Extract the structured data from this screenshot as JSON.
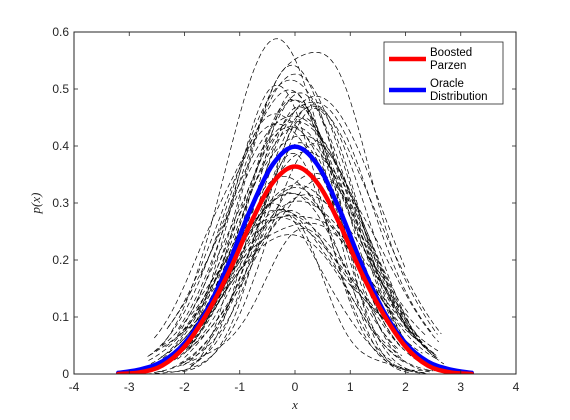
{
  "chart_data": {
    "type": "line",
    "xlabel": "x",
    "ylabel": "p(x)",
    "xlim": [
      -4,
      4
    ],
    "ylim": [
      0,
      0.6
    ],
    "xticks": [
      -4,
      -3,
      -2,
      -1,
      0,
      1,
      2,
      3,
      4
    ],
    "xtick_labels": [
      "-4",
      "-3",
      "-2",
      "-1",
      "0",
      "1",
      "2",
      "3",
      "4"
    ],
    "yticks": [
      0,
      0.1,
      0.2,
      0.3,
      0.4,
      0.5,
      0.6
    ],
    "ytick_labels": [
      "0",
      "0.1",
      "0.2",
      "0.3",
      "0.4",
      "0.5",
      "0.6"
    ],
    "grid": false,
    "legend_position": "top-right",
    "x": [
      -3.2,
      -2.8,
      -2.4,
      -2.0,
      -1.6,
      -1.2,
      -0.8,
      -0.4,
      0.0,
      0.4,
      0.8,
      1.2,
      1.6,
      2.0,
      2.4,
      2.8,
      3.2
    ],
    "series": [
      {
        "name": "Boosted Parzen",
        "legend_lines": [
          "Boosted",
          "Parzen"
        ],
        "color": "#ff0000",
        "style": "solid",
        "values": [
          0.0,
          0.003,
          0.015,
          0.048,
          0.105,
          0.178,
          0.265,
          0.336,
          0.364,
          0.336,
          0.265,
          0.178,
          0.105,
          0.048,
          0.015,
          0.003,
          0.0
        ]
      },
      {
        "name": "Oracle Distribution",
        "legend_lines": [
          "Oracle",
          "Distribution"
        ],
        "color": "#0000ff",
        "style": "solid",
        "values": [
          0.002,
          0.008,
          0.022,
          0.054,
          0.111,
          0.194,
          0.29,
          0.368,
          0.399,
          0.368,
          0.29,
          0.194,
          0.111,
          0.054,
          0.022,
          0.008,
          0.002
        ]
      }
    ],
    "background_samples": {
      "color": "#000000",
      "style": "dashed",
      "count": 48,
      "peak_range": [
        0.23,
        0.59
      ],
      "peak_x_range": [
        -0.35,
        0.4
      ]
    }
  }
}
